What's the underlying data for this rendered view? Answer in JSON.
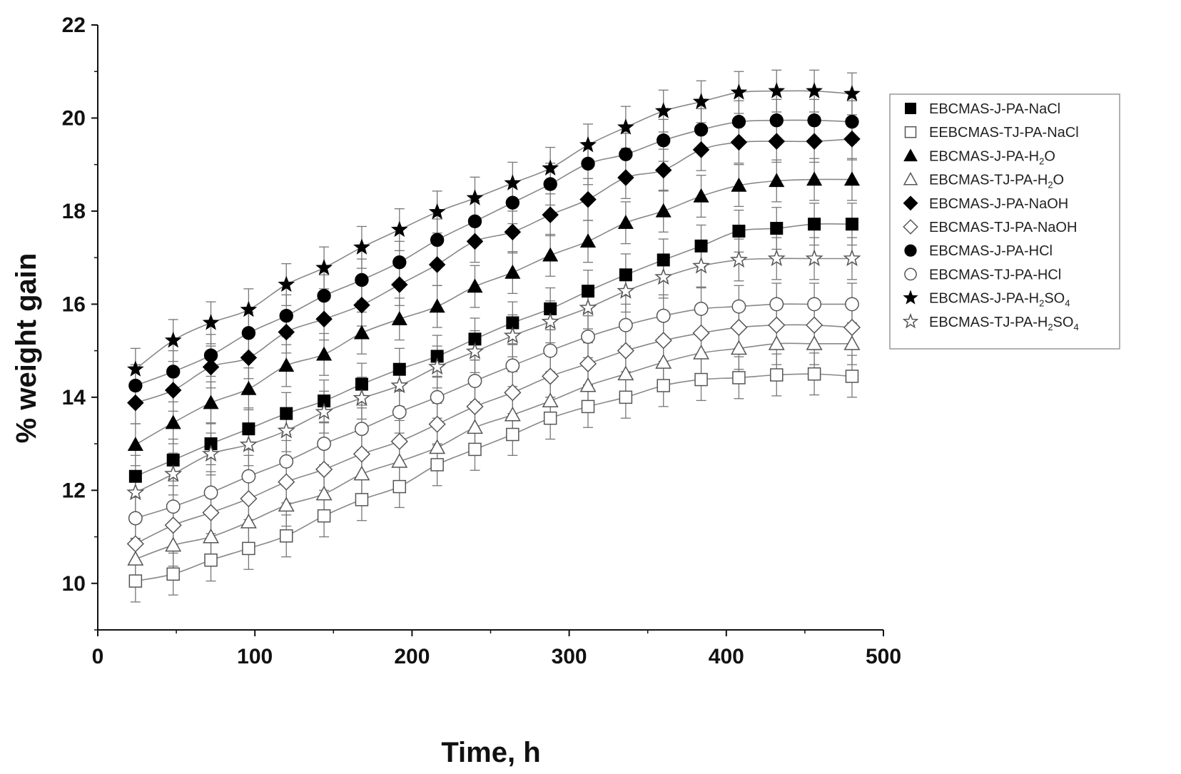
{
  "chart_data": {
    "type": "scatter",
    "title": "",
    "xlabel": "Time, h",
    "ylabel": "% weight gain",
    "xlim": [
      0,
      500
    ],
    "ylim": [
      9,
      22
    ],
    "x_ticks": [
      "0",
      "100",
      "200",
      "300",
      "400",
      "500"
    ],
    "y_ticks": [
      "10",
      "12",
      "14",
      "16",
      "18",
      "20",
      "22"
    ],
    "x_tick_values": [
      0,
      100,
      200,
      300,
      400,
      500
    ],
    "y_tick_values": [
      10,
      12,
      14,
      16,
      18,
      20,
      22
    ],
    "grid": false,
    "legend_position": "right",
    "x": [
      24,
      48,
      72,
      96,
      120,
      144,
      168,
      192,
      216,
      240,
      264,
      288,
      312,
      336,
      360,
      384,
      408,
      432,
      456,
      480
    ],
    "error_bar": 0.45,
    "series": [
      {
        "label_main": "EBCMAS-J-PA-NaCl",
        "label_sub": "",
        "label_tail": "",
        "marker": "square",
        "filled": true,
        "values": [
          12.3,
          12.65,
          13.0,
          13.32,
          13.65,
          13.92,
          14.28,
          14.6,
          14.88,
          15.25,
          15.6,
          15.9,
          16.28,
          16.63,
          16.95,
          17.25,
          17.57,
          17.63,
          17.72,
          17.72
        ]
      },
      {
        "label_main": "EEBCMAS-TJ-PA-NaCl",
        "label_sub": "",
        "label_tail": "",
        "marker": "square",
        "filled": false,
        "values": [
          10.05,
          10.2,
          10.5,
          10.75,
          11.02,
          11.45,
          11.8,
          12.08,
          12.55,
          12.88,
          13.2,
          13.55,
          13.8,
          14.0,
          14.25,
          14.38,
          14.42,
          14.48,
          14.5,
          14.45
        ]
      },
      {
        "label_main": "EBCMAS-J-PA-H",
        "label_sub": "2",
        "label_tail": "O",
        "marker": "triangle",
        "filled": true,
        "values": [
          12.98,
          13.45,
          13.88,
          14.18,
          14.68,
          14.92,
          15.38,
          15.68,
          15.95,
          16.38,
          16.68,
          17.05,
          17.35,
          17.75,
          18.0,
          18.32,
          18.55,
          18.65,
          18.68,
          18.68
        ]
      },
      {
        "label_main": "EBCMAS-TJ-PA-H",
        "label_sub": "2",
        "label_tail": "O",
        "marker": "triangle",
        "filled": false,
        "values": [
          10.52,
          10.82,
          11.0,
          11.32,
          11.68,
          11.92,
          12.35,
          12.62,
          12.92,
          13.35,
          13.62,
          13.92,
          14.25,
          14.5,
          14.75,
          14.95,
          15.05,
          15.15,
          15.15,
          15.15
        ]
      },
      {
        "label_main": "EBCMAS-J-PA-NaOH",
        "label_sub": "",
        "label_tail": "",
        "marker": "diamond",
        "filled": true,
        "values": [
          13.88,
          14.15,
          14.65,
          14.85,
          15.4,
          15.68,
          15.98,
          16.42,
          16.85,
          17.35,
          17.55,
          17.92,
          18.25,
          18.72,
          18.88,
          19.32,
          19.48,
          19.5,
          19.5,
          19.55
        ]
      },
      {
        "label_main": "EBCMAS-TJ-PA-NaOH",
        "label_sub": "",
        "label_tail": "",
        "marker": "diamond",
        "filled": false,
        "values": [
          10.85,
          11.25,
          11.52,
          11.82,
          12.18,
          12.45,
          12.78,
          13.05,
          13.42,
          13.8,
          14.1,
          14.45,
          14.72,
          15.0,
          15.22,
          15.38,
          15.5,
          15.55,
          15.55,
          15.5
        ]
      },
      {
        "label_main": "EBCMAS-J-PA-HCl",
        "label_sub": "",
        "label_tail": "",
        "marker": "circle",
        "filled": true,
        "values": [
          14.25,
          14.55,
          14.9,
          15.38,
          15.75,
          16.18,
          16.52,
          16.9,
          17.38,
          17.78,
          18.18,
          18.58,
          19.02,
          19.22,
          19.52,
          19.75,
          19.92,
          19.95,
          19.95,
          19.92
        ]
      },
      {
        "label_main": "EBCMAS-TJ-PA-HCl",
        "label_sub": "",
        "label_tail": "",
        "marker": "circle",
        "filled": false,
        "values": [
          11.4,
          11.65,
          11.95,
          12.3,
          12.62,
          13.0,
          13.32,
          13.68,
          14.0,
          14.35,
          14.68,
          15.0,
          15.3,
          15.55,
          15.75,
          15.9,
          15.95,
          16.0,
          16.0,
          16.0
        ]
      },
      {
        "label_main": "EBCMAS-J-PA-H",
        "label_sub": "2",
        "label_tail": "SO",
        "label_sub2": "4",
        "marker": "star",
        "filled": true,
        "values": [
          14.6,
          15.22,
          15.6,
          15.88,
          16.42,
          16.78,
          17.22,
          17.6,
          17.98,
          18.28,
          18.6,
          18.92,
          19.42,
          19.8,
          20.15,
          20.35,
          20.55,
          20.58,
          20.58,
          20.52
        ]
      },
      {
        "label_main": "EBCMAS-TJ-PA-H",
        "label_sub": "2",
        "label_tail": "SO",
        "label_sub2": "4",
        "marker": "star",
        "filled": false,
        "values": [
          11.95,
          12.35,
          12.78,
          12.98,
          13.28,
          13.68,
          13.98,
          14.25,
          14.65,
          14.98,
          15.32,
          15.62,
          15.92,
          16.28,
          16.58,
          16.82,
          16.95,
          16.98,
          16.98,
          16.98
        ]
      }
    ]
  }
}
